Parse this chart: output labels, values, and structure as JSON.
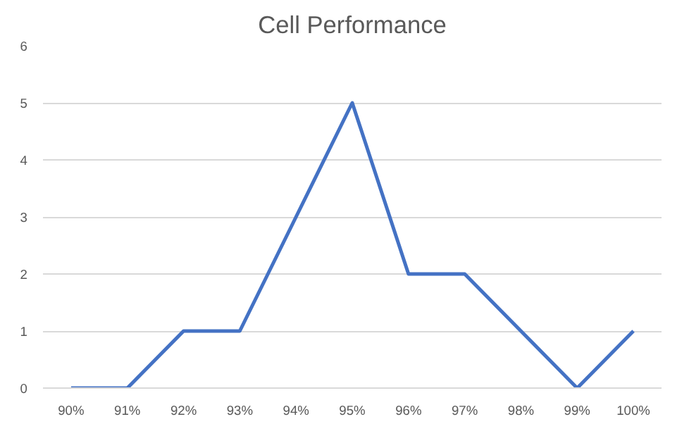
{
  "chart_data": {
    "type": "line",
    "title": "Cell Performance",
    "categories": [
      "90%",
      "91%",
      "92%",
      "93%",
      "94%",
      "95%",
      "96%",
      "97%",
      "98%",
      "99%",
      "100%"
    ],
    "values": [
      0,
      0,
      1,
      1,
      3,
      5,
      2,
      2,
      1,
      0,
      1
    ],
    "color": "#4472c4",
    "ylim": [
      0,
      6
    ],
    "yticks": [
      0,
      1,
      2,
      3,
      4,
      5,
      6
    ],
    "grid": "y",
    "legend": false,
    "marker": "none",
    "line_style": "solid"
  }
}
